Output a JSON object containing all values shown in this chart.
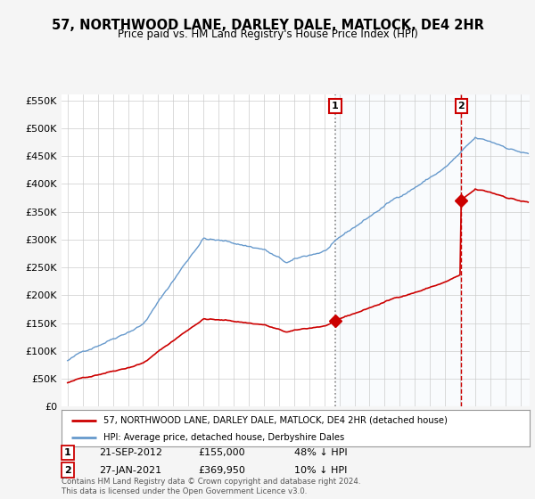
{
  "title": "57, NORTHWOOD LANE, DARLEY DALE, MATLOCK, DE4 2HR",
  "subtitle": "Price paid vs. HM Land Registry's House Price Index (HPI)",
  "legend_label_red": "57, NORTHWOOD LANE, DARLEY DALE, MATLOCK, DE4 2HR (detached house)",
  "legend_label_blue": "HPI: Average price, detached house, Derbyshire Dales",
  "sale1_date": "21-SEP-2012",
  "sale1_price": "£155,000",
  "sale1_hpi": "48% ↓ HPI",
  "sale2_date": "27-JAN-2021",
  "sale2_price": "£369,950",
  "sale2_hpi": "10% ↓ HPI",
  "footnote": "Contains HM Land Registry data © Crown copyright and database right 2024.\nThis data is licensed under the Open Government Licence v3.0.",
  "ylim": [
    0,
    560000
  ],
  "yticks": [
    0,
    50000,
    100000,
    150000,
    200000,
    250000,
    300000,
    350000,
    400000,
    450000,
    500000,
    550000
  ],
  "ytick_labels": [
    "£0",
    "£50K",
    "£100K",
    "£150K",
    "£200K",
    "£250K",
    "£300K",
    "£350K",
    "£400K",
    "£450K",
    "£500K",
    "£550K"
  ],
  "red_color": "#cc0000",
  "blue_color": "#6699cc",
  "sale1_x": 2012.72,
  "sale2_x": 2021.07,
  "sale1_price_val": 155000,
  "sale2_price_val": 369950,
  "background_color": "#f5f5f5",
  "plot_bg": "#ffffff",
  "shading_color": "#dce8f5",
  "grid_color": "#cccccc"
}
